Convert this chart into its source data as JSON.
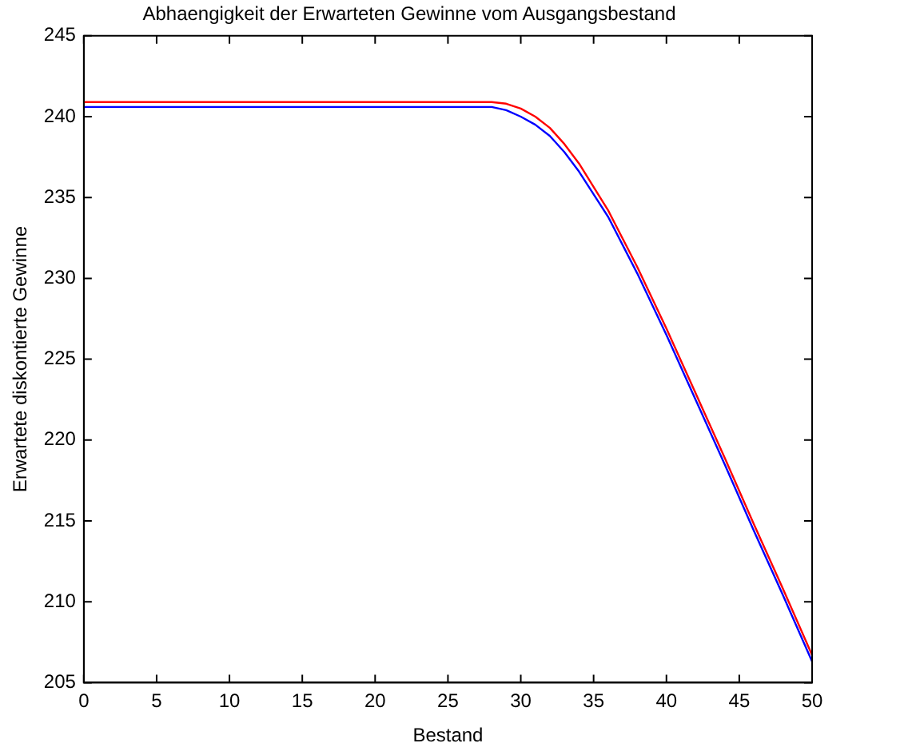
{
  "chart_data": {
    "type": "line",
    "title": "Abhaengigkeit der Erwarteten Gewinne vom Ausgangsbestand",
    "xlabel": "Bestand",
    "ylabel": "Erwartete diskontierte Gewinne",
    "xlim": [
      0,
      50
    ],
    "xticks": [
      0,
      5,
      10,
      15,
      20,
      25,
      30,
      35,
      40,
      45,
      50
    ],
    "ylim": [
      205,
      245
    ],
    "yticks": [
      205,
      210,
      215,
      220,
      225,
      230,
      235,
      240,
      245
    ],
    "grid": false,
    "legend": false,
    "marker": "none",
    "line_style": "solid",
    "series": [
      {
        "color": "#ff0000",
        "x": [
          0,
          28,
          29,
          30,
          31,
          32,
          33,
          34,
          36,
          38,
          40,
          42,
          44,
          46,
          48,
          50
        ],
        "values": [
          240.9,
          240.9,
          240.8,
          240.5,
          240.0,
          239.3,
          238.3,
          237.1,
          234.2,
          230.7,
          226.9,
          222.9,
          218.9,
          214.8,
          210.8,
          206.7
        ]
      },
      {
        "color": "#0000ff",
        "x": [
          0,
          28,
          29,
          30,
          31,
          32,
          33,
          34,
          36,
          38,
          40,
          42,
          44,
          46,
          48,
          50
        ],
        "values": [
          240.6,
          240.6,
          240.4,
          240.0,
          239.5,
          238.8,
          237.8,
          236.6,
          233.8,
          230.3,
          226.5,
          222.5,
          218.5,
          214.4,
          210.4,
          206.3
        ]
      }
    ]
  }
}
